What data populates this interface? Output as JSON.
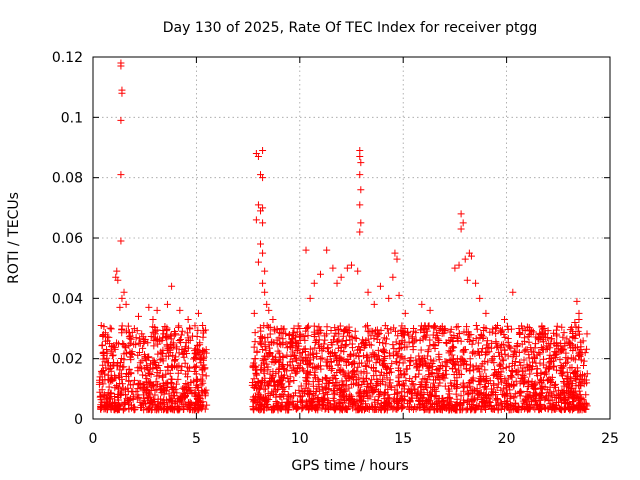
{
  "chart_data": {
    "type": "scatter",
    "title": "Day 130 of 2025, Rate Of TEC Index for receiver ptgg",
    "xlabel": "GPS time / hours",
    "ylabel": "ROTI / TECUs",
    "xlim": [
      0,
      25
    ],
    "ylim": [
      0,
      0.12
    ],
    "xticks": [
      0,
      5,
      10,
      15,
      20,
      25
    ],
    "xtick_labels": [
      "0",
      "5",
      "10",
      "15",
      "20",
      "25"
    ],
    "yticks": [
      0,
      0.02,
      0.04,
      0.06,
      0.08,
      0.1,
      0.12
    ],
    "ytick_labels": [
      "0",
      "0.02",
      "0.04",
      "0.06",
      "0.08",
      "0.1",
      "0.12"
    ],
    "grid": true,
    "marker": "+",
    "series": [
      {
        "name": "ROTI",
        "color": "#ff0000",
        "note": "dense background cloud: roughly 0.003–0.03 TECU/s over 0.3–5.5 h and 7.7–23.9 h",
        "points": [
          [
            1.35,
            0.118
          ],
          [
            1.35,
            0.117
          ],
          [
            1.4,
            0.109
          ],
          [
            1.4,
            0.108
          ],
          [
            1.35,
            0.099
          ],
          [
            1.35,
            0.081
          ],
          [
            1.35,
            0.059
          ],
          [
            1.15,
            0.049
          ],
          [
            1.1,
            0.047
          ],
          [
            1.2,
            0.046
          ],
          [
            1.5,
            0.042
          ],
          [
            1.4,
            0.04
          ],
          [
            1.6,
            0.038
          ],
          [
            1.3,
            0.037
          ],
          [
            0.4,
            0.031
          ],
          [
            0.5,
            0.028
          ],
          [
            0.8,
            0.025
          ],
          [
            2.2,
            0.034
          ],
          [
            2.7,
            0.037
          ],
          [
            2.9,
            0.033
          ],
          [
            3.1,
            0.036
          ],
          [
            3.6,
            0.038
          ],
          [
            3.8,
            0.044
          ],
          [
            4.2,
            0.036
          ],
          [
            4.6,
            0.033
          ],
          [
            5.1,
            0.035
          ],
          [
            5.3,
            0.031
          ],
          [
            7.9,
            0.088
          ],
          [
            8.0,
            0.087
          ],
          [
            8.2,
            0.089
          ],
          [
            8.1,
            0.081
          ],
          [
            8.2,
            0.08
          ],
          [
            8.0,
            0.071
          ],
          [
            8.1,
            0.069
          ],
          [
            8.2,
            0.07
          ],
          [
            7.9,
            0.066
          ],
          [
            8.2,
            0.065
          ],
          [
            8.1,
            0.058
          ],
          [
            8.2,
            0.055
          ],
          [
            8.0,
            0.052
          ],
          [
            8.3,
            0.049
          ],
          [
            8.2,
            0.045
          ],
          [
            8.3,
            0.042
          ],
          [
            8.4,
            0.038
          ],
          [
            8.5,
            0.036
          ],
          [
            8.7,
            0.033
          ],
          [
            7.8,
            0.035
          ],
          [
            9.1,
            0.03
          ],
          [
            9.5,
            0.028
          ],
          [
            10.0,
            0.03
          ],
          [
            10.3,
            0.056
          ],
          [
            10.5,
            0.04
          ],
          [
            10.7,
            0.045
          ],
          [
            11.0,
            0.048
          ],
          [
            11.3,
            0.056
          ],
          [
            11.6,
            0.05
          ],
          [
            11.8,
            0.045
          ],
          [
            12.0,
            0.047
          ],
          [
            12.3,
            0.05
          ],
          [
            12.5,
            0.051
          ],
          [
            12.8,
            0.049
          ],
          [
            12.9,
            0.089
          ],
          [
            12.9,
            0.087
          ],
          [
            12.95,
            0.085
          ],
          [
            12.9,
            0.081
          ],
          [
            12.95,
            0.076
          ],
          [
            12.9,
            0.071
          ],
          [
            12.95,
            0.065
          ],
          [
            12.9,
            0.062
          ],
          [
            13.3,
            0.042
          ],
          [
            13.6,
            0.038
          ],
          [
            13.9,
            0.044
          ],
          [
            14.3,
            0.04
          ],
          [
            14.6,
            0.055
          ],
          [
            14.7,
            0.053
          ],
          [
            14.5,
            0.047
          ],
          [
            14.8,
            0.041
          ],
          [
            15.1,
            0.035
          ],
          [
            15.5,
            0.03
          ],
          [
            15.9,
            0.038
          ],
          [
            16.3,
            0.036
          ],
          [
            16.8,
            0.03
          ],
          [
            17.5,
            0.05
          ],
          [
            17.7,
            0.051
          ],
          [
            17.8,
            0.068
          ],
          [
            17.8,
            0.063
          ],
          [
            17.9,
            0.065
          ],
          [
            18.0,
            0.053
          ],
          [
            18.2,
            0.055
          ],
          [
            18.3,
            0.054
          ],
          [
            18.1,
            0.046
          ],
          [
            18.5,
            0.045
          ],
          [
            18.7,
            0.04
          ],
          [
            19.0,
            0.035
          ],
          [
            19.5,
            0.03
          ],
          [
            19.9,
            0.033
          ],
          [
            20.3,
            0.042
          ],
          [
            20.6,
            0.03
          ],
          [
            21.1,
            0.028
          ],
          [
            21.4,
            0.025
          ],
          [
            21.8,
            0.03
          ],
          [
            22.3,
            0.025
          ],
          [
            22.7,
            0.023
          ],
          [
            23.1,
            0.025
          ],
          [
            23.4,
            0.039
          ],
          [
            23.5,
            0.035
          ],
          [
            23.5,
            0.033
          ],
          [
            23.3,
            0.032
          ],
          [
            23.8,
            0.022
          ],
          [
            23.9,
            0.015
          ]
        ]
      }
    ]
  }
}
